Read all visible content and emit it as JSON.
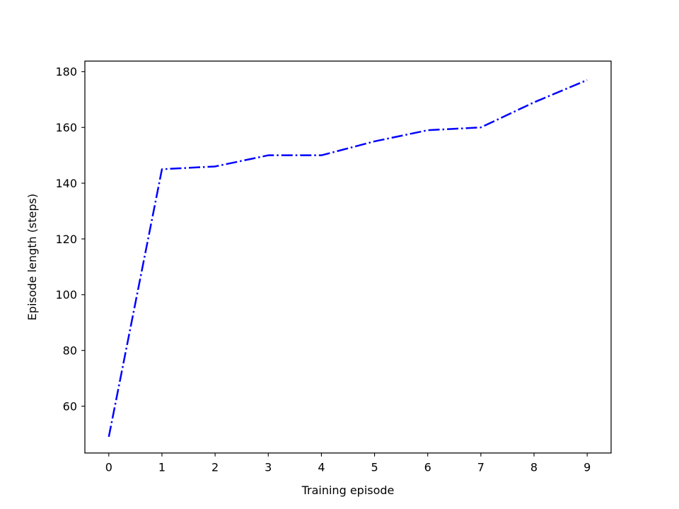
{
  "chart_data": {
    "type": "line",
    "title": "",
    "xlabel": "Training episode",
    "ylabel": "Episode length (steps)",
    "xlim": [
      -0.45,
      9.45
    ],
    "ylim": [
      43.2,
      183.8
    ],
    "x_ticks": [
      0,
      1,
      2,
      3,
      4,
      5,
      6,
      7,
      8,
      9
    ],
    "y_ticks": [
      60,
      80,
      100,
      120,
      140,
      160,
      180
    ],
    "grid": false,
    "legend": "none",
    "series": [
      {
        "x": [
          0,
          1,
          2,
          3,
          4,
          5,
          6,
          7,
          8,
          9
        ],
        "values": [
          49,
          145,
          146,
          150,
          150,
          155,
          159,
          160,
          169,
          177
        ],
        "color": "#0000ff",
        "line_style": "dash-dot"
      }
    ]
  }
}
